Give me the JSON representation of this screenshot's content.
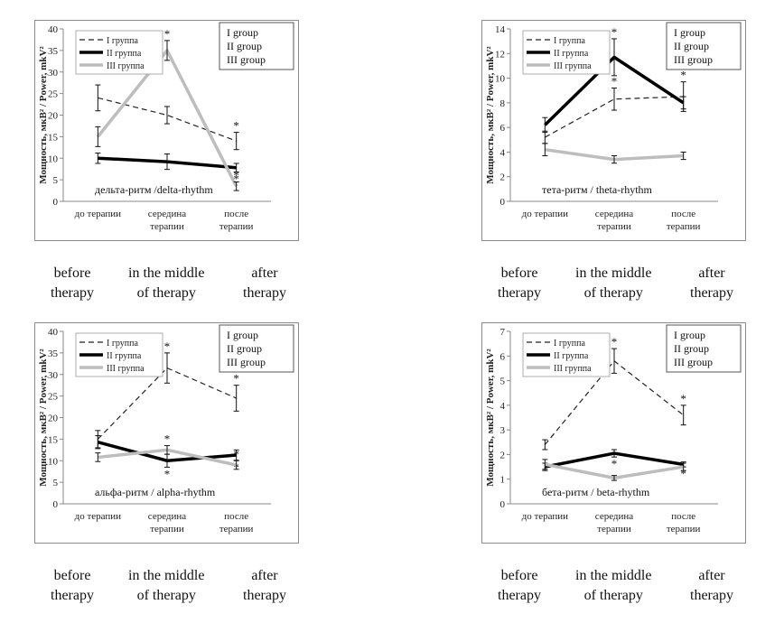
{
  "panels": [
    {
      "id": "delta",
      "ylabel": "Мощность, мкВ² / Power, mkV²",
      "ylim": [
        0,
        40
      ],
      "yticks": [
        0,
        5,
        10,
        15,
        20,
        25,
        30,
        35,
        40
      ],
      "categories": [
        "до терапии",
        "середина\nтерапии",
        "после\nтерапии"
      ],
      "rhythm_label": "дельта-ритм /delta-rhythm",
      "legend_ru": [
        "I группа",
        "II группа",
        "III группа"
      ],
      "legend_en": [
        "I group",
        "II group",
        "III group"
      ],
      "eng_categories": [
        "before\ntherapy",
        "in the middle\nof therapy",
        "after\ntherapy"
      ],
      "chart_data": {
        "type": "line",
        "categories": [
          "до терапии",
          "середина терапии",
          "после терапии"
        ],
        "ylabel": "Мощность, мкВ² / Power, mkV²",
        "ylim": [
          0,
          40
        ],
        "series": [
          {
            "name": "I группа",
            "values": [
              24,
              20,
              14
            ],
            "errors": [
              3,
              2,
              2
            ],
            "stars": [
              false,
              false,
              true
            ]
          },
          {
            "name": "II группа",
            "values": [
              10,
              9.2,
              7.8
            ],
            "errors": [
              1.2,
              1.8,
              1
            ],
            "stars": [
              false,
              false,
              true
            ]
          },
          {
            "name": "III группа",
            "values": [
              15,
              35,
              3.5
            ],
            "errors": [
              2.3,
              2.3,
              1
            ],
            "stars": [
              false,
              true,
              true
            ]
          }
        ]
      }
    },
    {
      "id": "theta",
      "ylabel": "Мощность, мкВ² / Power, mkV²",
      "ylim": [
        0,
        14
      ],
      "yticks": [
        0,
        2,
        4,
        6,
        8,
        10,
        12,
        14
      ],
      "categories": [
        "до терапии",
        "середина\nтерапии",
        "после\nтерапии"
      ],
      "rhythm_label": "тета-ритм / theta-rhythm",
      "legend_ru": [
        "I группа",
        "II группа",
        "III группа"
      ],
      "legend_en": [
        "I group",
        "II group",
        "III group"
      ],
      "eng_categories": [
        "before\ntherapy",
        "in the middle\nof therapy",
        "after\ntherapy"
      ],
      "chart_data": {
        "type": "line",
        "categories": [
          "до терапии",
          "середина терапии",
          "после терапии"
        ],
        "ylabel": "Мощность, мкВ² / Power, mkV²",
        "ylim": [
          0,
          14
        ],
        "series": [
          {
            "name": "I группа",
            "values": [
              5.2,
              8.3,
              8.5
            ],
            "errors": [
              0.5,
              0.9,
              1.2
            ],
            "stars": [
              false,
              true,
              true
            ]
          },
          {
            "name": "II группа",
            "values": [
              6.2,
              11.7,
              8
            ],
            "errors": [
              0.6,
              1.5,
              0.5
            ],
            "stars": [
              false,
              true,
              false
            ]
          },
          {
            "name": "III группа",
            "values": [
              4.2,
              3.4,
              3.7
            ],
            "errors": [
              0.5,
              0.3,
              0.3
            ],
            "stars": [
              false,
              false,
              false
            ]
          }
        ]
      }
    },
    {
      "id": "alpha",
      "ylabel": "Мощность, мкВ² / Power, mkV²",
      "ylim": [
        0,
        40
      ],
      "yticks": [
        0,
        5,
        10,
        15,
        20,
        25,
        30,
        35,
        40
      ],
      "categories": [
        "до терапии",
        "середина\nтерапии",
        "после\nтерапии"
      ],
      "rhythm_label": "альфа-ритм / alpha-rhythm",
      "legend_ru": [
        "I группа",
        "II группа",
        "III группа"
      ],
      "legend_en": [
        "I group",
        "II group",
        "III group"
      ],
      "eng_categories": [
        "before\ntherapy",
        "in the middle\nof therapy",
        "after\ntherapy"
      ],
      "chart_data": {
        "type": "line",
        "categories": [
          "до терапии",
          "середина терапии",
          "после терапии"
        ],
        "ylabel": "Мощность, мкВ² / Power, mkV²",
        "ylim": [
          0,
          40
        ],
        "series": [
          {
            "name": "I группа",
            "values": [
              15,
              31.5,
              24.5
            ],
            "errors": [
              2,
              3.5,
              3
            ],
            "stars": [
              false,
              true,
              true
            ]
          },
          {
            "name": "II группа",
            "values": [
              14.3,
              10,
              11.3
            ],
            "errors": [
              1.5,
              1.5,
              1.2
            ],
            "stars": [
              false,
              true,
              true
            ]
          },
          {
            "name": "III группа",
            "values": [
              10.8,
              12.5,
              9
            ],
            "errors": [
              1,
              1,
              1
            ],
            "stars": [
              false,
              true,
              true
            ]
          }
        ]
      }
    },
    {
      "id": "beta",
      "ylabel": "Мощность, мкВ² / Power, mkV²",
      "ylim": [
        0,
        7
      ],
      "yticks": [
        0,
        1,
        2,
        3,
        4,
        5,
        6,
        7
      ],
      "categories": [
        "до терапии",
        "середина\nтерапии",
        "после\nтерапии"
      ],
      "rhythm_label": "бета-ритм / beta-rhythm",
      "legend_ru": [
        "I группа",
        "II группа",
        "III группа"
      ],
      "legend_en": [
        "I group",
        "II group",
        "III group"
      ],
      "eng_categories": [
        "before\ntherapy",
        "in the middle\nof therapy",
        "after\ntherapy"
      ],
      "chart_data": {
        "type": "line",
        "categories": [
          "до терапии",
          "середина терапии",
          "после терапии"
        ],
        "ylabel": "Мощность, мкВ² / Power, mkV²",
        "ylim": [
          0,
          7
        ],
        "series": [
          {
            "name": "I группа",
            "values": [
              2.4,
              5.8,
              3.6
            ],
            "errors": [
              0.2,
              0.5,
              0.4
            ],
            "stars": [
              false,
              true,
              true
            ]
          },
          {
            "name": "II группа",
            "values": [
              1.5,
              2.05,
              1.6
            ],
            "errors": [
              0.15,
              0.15,
              0.1
            ],
            "stars": [
              false,
              true,
              true
            ]
          },
          {
            "name": "III группа",
            "values": [
              1.6,
              1.05,
              1.5
            ],
            "errors": [
              0.2,
              0.1,
              0.15
            ],
            "stars": [
              false,
              false,
              false
            ]
          }
        ]
      }
    }
  ]
}
